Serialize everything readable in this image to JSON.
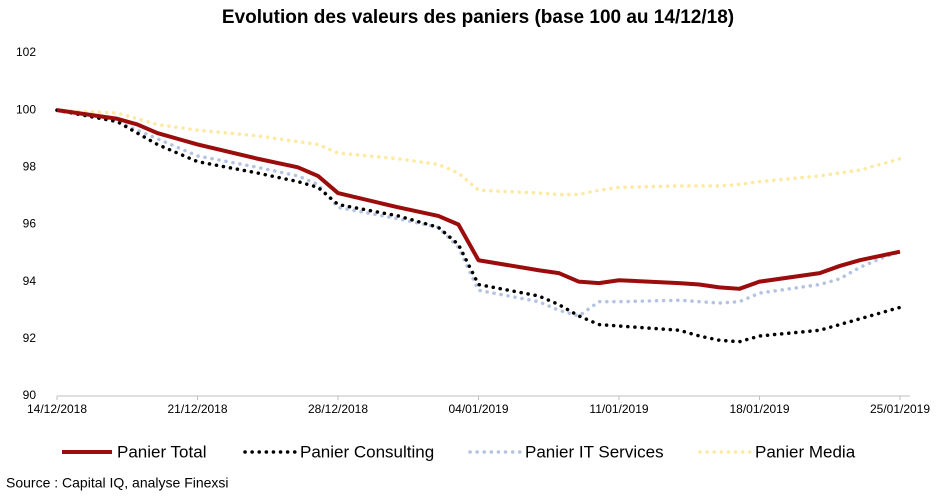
{
  "chart_data": {
    "type": "line",
    "title": "Evolution des valeurs des paniers (base 100 au 14/12/18)",
    "x": [
      "14/12/2018",
      "17/12/2018",
      "18/12/2018",
      "19/12/2018",
      "20/12/2018",
      "21/12/2018",
      "24/12/2018",
      "26/12/2018",
      "27/12/2018",
      "28/12/2018",
      "31/12/2018",
      "02/01/2019",
      "03/01/2019",
      "04/01/2019",
      "07/01/2019",
      "08/01/2019",
      "09/01/2019",
      "10/01/2019",
      "11/01/2019",
      "14/01/2019",
      "15/01/2019",
      "16/01/2019",
      "17/01/2019",
      "18/01/2019",
      "21/01/2019",
      "22/01/2019",
      "23/01/2019",
      "24/01/2019",
      "25/01/2019"
    ],
    "series": [
      {
        "name": "Panier Total",
        "color": "#9b0c0c",
        "style": "solid",
        "values": [
          100,
          99.7,
          99.5,
          99.2,
          99.0,
          98.8,
          98.3,
          98.0,
          97.7,
          97.1,
          96.6,
          96.3,
          96.0,
          94.75,
          94.4,
          94.3,
          94.0,
          93.95,
          94.05,
          93.95,
          93.9,
          93.8,
          93.75,
          94.0,
          94.3,
          94.55,
          94.75,
          94.9,
          95.05
        ]
      },
      {
        "name": "Panier Consulting",
        "color": "#000000",
        "style": "dotted",
        "values": [
          100,
          99.6,
          99.2,
          98.8,
          98.5,
          98.2,
          97.8,
          97.5,
          97.3,
          96.7,
          96.3,
          95.9,
          95.3,
          93.9,
          93.5,
          93.2,
          92.8,
          92.5,
          92.45,
          92.3,
          92.1,
          91.95,
          91.9,
          92.1,
          92.3,
          92.5,
          92.7,
          92.9,
          93.1
        ]
      },
      {
        "name": "Panier IT Services",
        "color": "#b4c3e0",
        "style": "dotted",
        "values": [
          100,
          99.6,
          99.3,
          99.0,
          98.7,
          98.4,
          98.0,
          97.7,
          97.4,
          96.6,
          96.2,
          95.9,
          95.2,
          93.7,
          93.3,
          93.0,
          92.8,
          93.3,
          93.3,
          93.35,
          93.3,
          93.25,
          93.3,
          93.6,
          93.9,
          94.1,
          94.5,
          94.8,
          95.05
        ]
      },
      {
        "name": "Panier Media",
        "color": "#fde9a0",
        "style": "dotted",
        "values": [
          100,
          99.9,
          99.7,
          99.5,
          99.4,
          99.3,
          99.1,
          98.9,
          98.8,
          98.5,
          98.3,
          98.1,
          97.8,
          97.2,
          97.1,
          97.05,
          97.05,
          97.2,
          97.3,
          97.35,
          97.35,
          97.35,
          97.4,
          97.5,
          97.7,
          97.8,
          97.9,
          98.1,
          98.3
        ]
      }
    ],
    "xlim": [
      "14/12/2018",
      "25/01/2019"
    ],
    "xticks": [
      "14/12/2018",
      "21/12/2018",
      "28/12/2018",
      "04/01/2019",
      "11/01/2019",
      "18/01/2019",
      "25/01/2019"
    ],
    "ylim": [
      90,
      102
    ],
    "yticks": [
      90,
      92,
      94,
      96,
      98,
      100,
      102
    ],
    "legend": "bottom",
    "source": "Source : Capital IQ, analyse Finexsi"
  }
}
